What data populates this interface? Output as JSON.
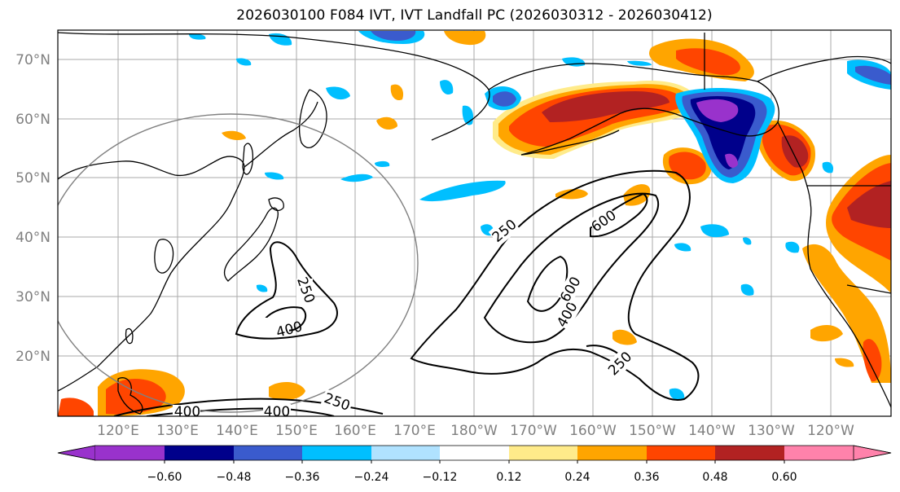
{
  "title": "2026030100 F084 IVT, IVT Landfall PC (2026030312 - 2026030412)",
  "lat_labels": [
    "70°N",
    "60°N",
    "50°N",
    "40°N",
    "30°N",
    "20°N"
  ],
  "lon_labels": [
    "120°E",
    "130°E",
    "140°E",
    "150°E",
    "160°E",
    "170°E",
    "180°W",
    "170°W",
    "160°W",
    "150°W",
    "140°W",
    "130°W",
    "120°W"
  ],
  "colorbar": {
    "colors": [
      "#9932CC",
      "#00008B",
      "#3A5BCD",
      "#00BFFF",
      "#B0E2FF",
      "#FFFFFF",
      "#FFEB8A",
      "#FFA500",
      "#FF4500",
      "#B22222",
      "#FF82AB"
    ],
    "tick_labels": [
      "−0.60",
      "−0.48",
      "−0.36",
      "−0.24",
      "−0.12",
      "0.12",
      "0.24",
      "0.36",
      "0.48",
      "0.60"
    ]
  },
  "contour_labels": [
    "250",
    "400",
    "250",
    "600",
    "400",
    "600",
    "250",
    "400",
    "400",
    "250"
  ],
  "colors": {
    "purple": "#9932CC",
    "navy": "#00008B",
    "blue": "#3A5BCD",
    "sky": "#00BFFF",
    "light_blue": "#B0E2FF",
    "yellow": "#FFEB8A",
    "orange": "#FFA500",
    "red_orange": "#FF4500",
    "dark_red": "#B22222",
    "pink": "#FF82AB"
  }
}
